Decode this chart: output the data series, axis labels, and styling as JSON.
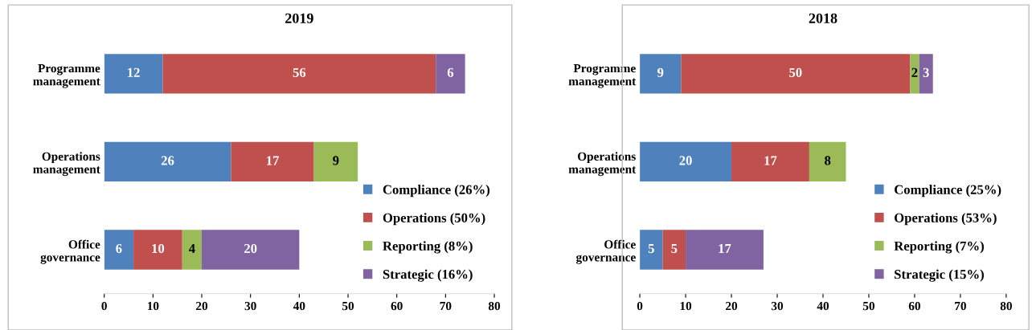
{
  "chart_data": [
    {
      "type": "bar",
      "title": "2019",
      "orientation": "horizontal",
      "stacked": true,
      "data_labels": true,
      "grid": false,
      "legend": "lower right",
      "categories": [
        "Programme\nmanagement",
        "Operations\nmanagement",
        "Office\ngovernance"
      ],
      "xlim": [
        0,
        80
      ],
      "xticks": [
        0,
        10,
        20,
        30,
        40,
        50,
        60,
        70,
        80
      ],
      "series": [
        {
          "name": "Compliance (26%)",
          "color": "#4f81bd",
          "values": [
            12,
            26,
            6
          ]
        },
        {
          "name": "Operations (50%)",
          "color": "#c0504d",
          "values": [
            56,
            17,
            10
          ]
        },
        {
          "name": "Reporting (8%)",
          "color": "#9bbb59",
          "values": [
            null,
            9,
            4
          ]
        },
        {
          "name": "Strategic (16%)",
          "color": "#8064a2",
          "values": [
            6,
            null,
            20
          ]
        }
      ]
    },
    {
      "type": "bar",
      "title": "2018",
      "orientation": "horizontal",
      "stacked": true,
      "data_labels": true,
      "grid": false,
      "legend": "lower right",
      "categories": [
        "Programme\nmanagement",
        "Operations\nmanagement",
        "Office\ngovernance"
      ],
      "xlim": [
        0,
        80
      ],
      "xticks": [
        0,
        10,
        20,
        30,
        40,
        50,
        60,
        70,
        80
      ],
      "series": [
        {
          "name": "Compliance (25%)",
          "color": "#4f81bd",
          "values": [
            9,
            20,
            5
          ]
        },
        {
          "name": "Operations (53%)",
          "color": "#c0504d",
          "values": [
            50,
            17,
            5
          ]
        },
        {
          "name": "Reporting (7%)",
          "color": "#9bbb59",
          "values": [
            2,
            8,
            null
          ]
        },
        {
          "name": "Strategic (15%)",
          "color": "#8064a2",
          "values": [
            3,
            null,
            17
          ]
        }
      ]
    }
  ]
}
